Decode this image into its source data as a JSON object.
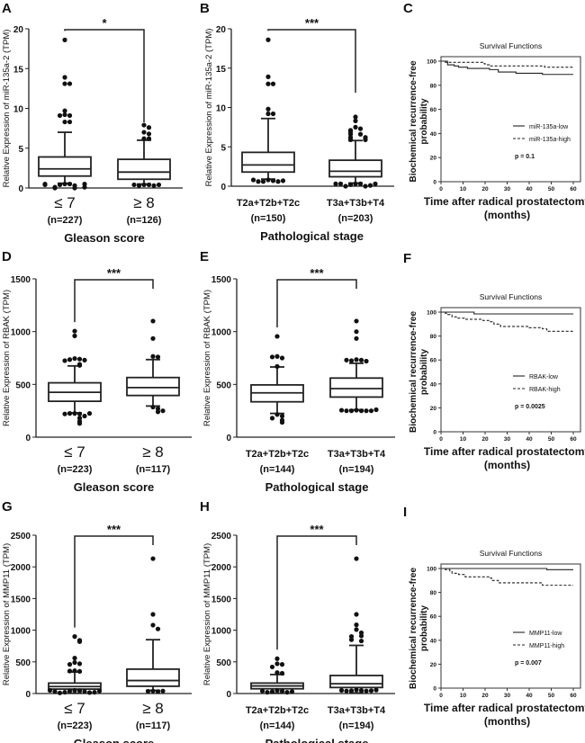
{
  "chart_data": [
    {
      "panel": "A",
      "type": "box",
      "ylabel": "Relative Expression of miR-135a-2 (TPM)",
      "ylim": [
        0,
        20
      ],
      "yticks": [
        0,
        5,
        10,
        15,
        20
      ],
      "xlabel": "Gleason score",
      "significance": "*",
      "categories": [
        {
          "label": "≤ 7",
          "n": "(n=227)"
        },
        {
          "label": "≥ 8",
          "n": "(n=126)"
        }
      ],
      "boxes": [
        {
          "whisker_low": 0.6,
          "q1": 1.5,
          "median": 2.4,
          "q3": 3.9,
          "whisker_high": 7.0,
          "outliers": [
            18.6,
            13.9,
            13.1,
            13.1,
            9.7,
            9.2,
            9.1,
            9.1,
            8.3,
            8.3,
            0.5,
            0.5,
            0.4,
            0.3,
            0.1,
            0.0,
            0.0,
            0.1,
            0.4,
            0.5,
            0.5
          ]
        },
        {
          "whisker_low": 0.5,
          "q1": 1.1,
          "median": 2.0,
          "q3": 3.6,
          "whisker_high": 6.0,
          "outliers": [
            7.9,
            7.6,
            7.0,
            6.8,
            6.2,
            6.2,
            0.4,
            0.4,
            0.3,
            0.3,
            0.4,
            0.4
          ]
        }
      ]
    },
    {
      "panel": "B",
      "type": "box",
      "ylabel": "Relative Expression of miR-135a-2 (TPM)",
      "ylim": [
        0,
        20
      ],
      "yticks": [
        0,
        5,
        10,
        15,
        20
      ],
      "xlabel": "Pathological stage",
      "significance": "***",
      "categories": [
        {
          "label": "T2a+T2b+T2c",
          "n": "(n=150)"
        },
        {
          "label": "T3a+T3b+T4",
          "n": "(n=203)"
        }
      ],
      "boxes": [
        {
          "whisker_low": 0.9,
          "q1": 1.8,
          "median": 2.7,
          "q3": 4.3,
          "whisker_high": 8.6,
          "outliers": [
            18.6,
            13.9,
            13.0,
            13.0,
            9.8,
            9.2,
            9.2,
            0.8,
            0.7,
            0.6,
            0.6,
            0.6,
            0.7,
            0.8
          ]
        },
        {
          "whisker_low": 0.4,
          "q1": 1.2,
          "median": 1.9,
          "q3": 3.3,
          "whisker_high": 5.8,
          "outliers": [
            8.8,
            8.3,
            7.5,
            7.3,
            7.1,
            6.9,
            6.6,
            6.6,
            6.2,
            6.2,
            5.9,
            5.9,
            0.3,
            0.3,
            0.2,
            0.0,
            0.0,
            0.1,
            0.3,
            0.3,
            0.3
          ]
        }
      ]
    },
    {
      "panel": "C",
      "type": "line",
      "title": "Survival Functions",
      "ylabel": "Biochemical recurrence-free probability",
      "xlabel": "Time after radical prostatectomy (months)",
      "xlim": [
        0,
        60
      ],
      "ylim": [
        0,
        100
      ],
      "xticks": [
        0,
        10,
        20,
        30,
        40,
        50,
        60
      ],
      "yticks": [
        0,
        20,
        40,
        60,
        80,
        100
      ],
      "pvalue": "p = 0.1",
      "legend": "bottom-right",
      "series": [
        {
          "name": "miR-135a-low",
          "style": "solid",
          "points": [
            [
              0,
              100
            ],
            [
              2,
              99
            ],
            [
              3,
              97
            ],
            [
              6,
              96
            ],
            [
              8,
              95
            ],
            [
              12,
              94
            ],
            [
              22,
              93
            ],
            [
              26,
              91
            ],
            [
              34,
              90
            ],
            [
              46,
              89
            ],
            [
              60,
              89
            ]
          ]
        },
        {
          "name": "miR-135a-high",
          "style": "dashed",
          "points": [
            [
              0,
              100
            ],
            [
              3,
              99
            ],
            [
              19,
              98
            ],
            [
              20,
              97
            ],
            [
              22,
              96
            ],
            [
              47,
              95
            ],
            [
              60,
              95
            ]
          ]
        }
      ]
    },
    {
      "panel": "D",
      "type": "box",
      "ylabel": "Relative Expression of RBAK (TPM)",
      "ylim": [
        0,
        1500
      ],
      "yticks": [
        0,
        500,
        1000,
        1500
      ],
      "xlabel": "Gleason score",
      "significance": "***",
      "categories": [
        {
          "label": "≤ 7",
          "n": "(n=223)"
        },
        {
          "label": "≥ 8",
          "n": "(n=117)"
        }
      ],
      "boxes": [
        {
          "whisker_low": 230,
          "q1": 340,
          "median": 425,
          "q3": 515,
          "whisker_high": 675,
          "outliers": [
            1005,
            960,
            745,
            740,
            735,
            730,
            725,
            690,
            680,
            225,
            220,
            225,
            200,
            180,
            150,
            130,
            220,
            225
          ]
        },
        {
          "whisker_low": 295,
          "q1": 395,
          "median": 470,
          "q3": 565,
          "whisker_high": 735,
          "outliers": [
            1100,
            935,
            765,
            760,
            285,
            270,
            240,
            250
          ]
        }
      ]
    },
    {
      "panel": "E",
      "type": "box",
      "ylabel": "Relative Expression of RBAK (TPM)",
      "ylim": [
        0,
        1500
      ],
      "yticks": [
        0,
        500,
        1000,
        1500
      ],
      "xlabel": "Pathological stage",
      "significance": "***",
      "categories": [
        {
          "label": "T2a+T2b+T2c",
          "n": "(n=144)"
        },
        {
          "label": "T3a+T3b+T4",
          "n": "(n=194)"
        }
      ],
      "boxes": [
        {
          "whisker_low": 225,
          "q1": 335,
          "median": 420,
          "q3": 495,
          "whisker_high": 665,
          "outliers": [
            955,
            765,
            750,
            760,
            670,
            215,
            200,
            180,
            160,
            140
          ]
        },
        {
          "whisker_low": 260,
          "q1": 380,
          "median": 460,
          "q3": 560,
          "whisker_high": 700,
          "outliers": [
            1100,
            1000,
            935,
            735,
            730,
            725,
            720,
            730,
            255,
            250,
            250,
            250,
            250,
            250,
            255,
            260
          ]
        }
      ]
    },
    {
      "panel": "F",
      "type": "line",
      "title": "Survival Functions",
      "ylabel": "Biochemical recurrence-free probability",
      "xlabel": "Time after radical prostatectomy (months)",
      "xlim": [
        0,
        60
      ],
      "ylim": [
        0,
        100
      ],
      "xticks": [
        0,
        10,
        20,
        30,
        40,
        50,
        60
      ],
      "yticks": [
        0,
        20,
        40,
        60,
        80,
        100
      ],
      "pvalue": "p = 0.0025",
      "legend": "bottom-right",
      "series": [
        {
          "name": "RBAK-low",
          "style": "solid",
          "points": [
            [
              0,
              100
            ],
            [
              15,
              98.5
            ],
            [
              60,
              98.5
            ]
          ]
        },
        {
          "name": "RBAK-high",
          "style": "dashed",
          "points": [
            [
              0,
              100
            ],
            [
              2,
              99
            ],
            [
              3,
              98
            ],
            [
              5,
              96
            ],
            [
              7,
              95
            ],
            [
              11,
              94
            ],
            [
              19,
              93
            ],
            [
              22,
              92
            ],
            [
              24,
              90
            ],
            [
              27,
              88
            ],
            [
              40,
              87
            ],
            [
              46,
              86
            ],
            [
              48,
              84
            ],
            [
              60,
              84
            ]
          ]
        }
      ]
    },
    {
      "panel": "G",
      "type": "box",
      "ylabel": "Relative Expression of MMP11 (TPM)",
      "ylim": [
        0,
        2500
      ],
      "yticks": [
        0,
        500,
        1000,
        1500,
        2000,
        2500
      ],
      "xlabel": "Gleason score",
      "significance": "***",
      "categories": [
        {
          "label": "≤ 7",
          "n": "(n=223)"
        },
        {
          "label": "≥ 8",
          "n": "(n=117)"
        }
      ],
      "boxes": [
        {
          "whisker_low": 5,
          "q1": 70,
          "median": 110,
          "q3": 165,
          "whisker_high": 340,
          "outliers": [
            900,
            840,
            820,
            560,
            490,
            470,
            460,
            360,
            350,
            355,
            50,
            45,
            40,
            30,
            20,
            15,
            10,
            20,
            30,
            40,
            50
          ]
        },
        {
          "whisker_low": 50,
          "q1": 115,
          "median": 205,
          "q3": 385,
          "whisker_high": 850,
          "outliers": [
            2130,
            1250,
            1080,
            1020,
            40,
            30,
            35,
            40
          ]
        }
      ]
    },
    {
      "panel": "H",
      "type": "box",
      "ylabel": "Relative Expression of MMP11 (TPM)",
      "ylim": [
        0,
        2500
      ],
      "yticks": [
        0,
        500,
        1000,
        1500,
        2000,
        2500
      ],
      "xlabel": "Pathological stage",
      "significance": "***",
      "categories": [
        {
          "label": "T2a+T2b+T2c",
          "n": "(n=144)"
        },
        {
          "label": "T3a+T3b+T4",
          "n": "(n=194)"
        }
      ],
      "boxes": [
        {
          "whisker_low": 5,
          "q1": 75,
          "median": 120,
          "q3": 165,
          "whisker_high": 300,
          "outliers": [
            550,
            470,
            460,
            420,
            330,
            320,
            50,
            40,
            30,
            20,
            20,
            30,
            40
          ]
        },
        {
          "whisker_low": 10,
          "q1": 95,
          "median": 155,
          "q3": 285,
          "whisker_high": 760,
          "outliers": [
            2130,
            1250,
            1085,
            1010,
            960,
            910,
            900,
            850,
            830,
            60,
            50,
            45,
            40,
            40,
            45,
            50,
            55
          ]
        }
      ]
    },
    {
      "panel": "I",
      "type": "line",
      "title": "Survival Functions",
      "ylabel": "Biochemical recurrence-free probability",
      "xlabel": "Time after radical prostatectomy (months)",
      "xlim": [
        0,
        60
      ],
      "ylim": [
        0,
        100
      ],
      "xticks": [
        0,
        10,
        20,
        30,
        40,
        50,
        60
      ],
      "yticks": [
        0,
        20,
        40,
        60,
        80,
        100
      ],
      "pvalue": "p = 0.007",
      "legend": "bottom-right",
      "series": [
        {
          "name": "MMP11-low",
          "style": "solid",
          "points": [
            [
              0,
              100
            ],
            [
              48,
              99
            ],
            [
              60,
              99
            ]
          ]
        },
        {
          "name": "MMP11-high",
          "style": "dashed",
          "points": [
            [
              0,
              100
            ],
            [
              2,
              99
            ],
            [
              4,
              98
            ],
            [
              5,
              96
            ],
            [
              8,
              95
            ],
            [
              11,
              93
            ],
            [
              22,
              92
            ],
            [
              23,
              90
            ],
            [
              26,
              88
            ],
            [
              46,
              86
            ],
            [
              60,
              86
            ]
          ]
        }
      ]
    }
  ]
}
